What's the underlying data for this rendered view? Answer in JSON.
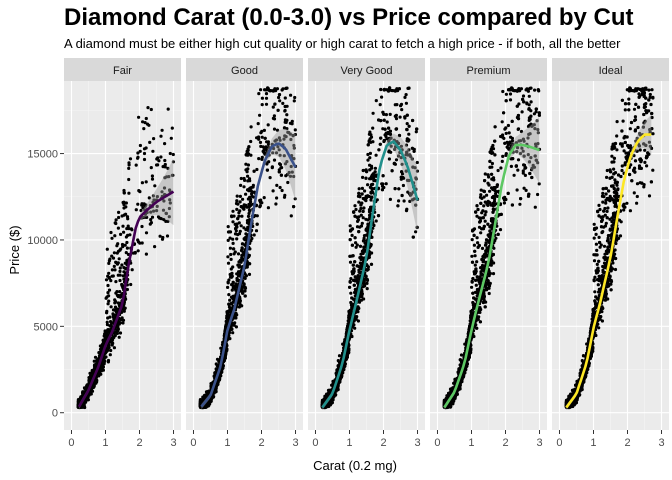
{
  "chart_data": {
    "type": "scatter",
    "title": "Diamond Carat (0.0-3.0) vs Price compared by Cut",
    "subtitle": "A diamond must be either high cut quality or high carat to fetch a high price - if both, all the better",
    "xlabel": "Carat (0.2 mg)",
    "ylabel": "Price ($)",
    "xlim": [
      0,
      3
    ],
    "ylim": [
      0,
      19000
    ],
    "x_ticks": [
      "0",
      "1",
      "2",
      "3"
    ],
    "y_ticks": [
      "0",
      "5000",
      "10000",
      "15000"
    ],
    "grid": true,
    "legend": "none",
    "point_color": "#000000",
    "panel_background": "#ebebeb",
    "strip_background": "#d9d9d9",
    "facets": [
      {
        "name": "Fair",
        "color": "#440154",
        "smooth": {
          "x": [
            0.22,
            0.5,
            0.8,
            1.0,
            1.2,
            1.5,
            1.7,
            1.9,
            2.0,
            2.2,
            2.5,
            3.0
          ],
          "y": [
            350,
            1300,
            2700,
            3900,
            4700,
            6300,
            8800,
            10800,
            11300,
            11700,
            12200,
            12800
          ]
        },
        "density": 0.55,
        "max_carat": 3.0
      },
      {
        "name": "Good",
        "color": "#3b528b",
        "smooth": {
          "x": [
            0.23,
            0.5,
            0.8,
            1.0,
            1.2,
            1.5,
            1.7,
            1.9,
            2.1,
            2.3,
            2.5,
            2.7,
            3.0
          ],
          "y": [
            350,
            1000,
            2700,
            4800,
            6000,
            8500,
            11000,
            13200,
            14600,
            15400,
            15600,
            15300,
            14200
          ]
        },
        "density": 0.8,
        "max_carat": 3.0
      },
      {
        "name": "Very Good",
        "color": "#21908c",
        "smooth": {
          "x": [
            0.2,
            0.5,
            0.8,
            1.0,
            1.2,
            1.5,
            1.7,
            1.9,
            2.1,
            2.3,
            2.5,
            2.7,
            3.0
          ],
          "y": [
            300,
            1100,
            2900,
            4800,
            6400,
            9000,
            11800,
            14300,
            15500,
            15700,
            15200,
            14300,
            12300
          ]
        },
        "density": 1.0,
        "max_carat": 3.0
      },
      {
        "name": "Premium",
        "color": "#5dc863",
        "smooth": {
          "x": [
            0.2,
            0.5,
            0.8,
            1.0,
            1.2,
            1.5,
            1.7,
            1.9,
            2.1,
            2.3,
            2.5,
            2.7,
            3.0
          ],
          "y": [
            300,
            1200,
            2900,
            4800,
            6400,
            8700,
            11000,
            13300,
            14900,
            15500,
            15500,
            15400,
            15200
          ]
        },
        "density": 1.0,
        "max_carat": 3.0
      },
      {
        "name": "Ideal",
        "color": "#fde725",
        "smooth": {
          "x": [
            0.2,
            0.5,
            0.8,
            1.0,
            1.2,
            1.5,
            1.7,
            1.9,
            2.1,
            2.3,
            2.5,
            2.7
          ],
          "y": [
            300,
            1100,
            2900,
            4900,
            6400,
            9000,
            11300,
            13500,
            14900,
            15700,
            16100,
            16100
          ]
        },
        "density": 1.0,
        "max_carat": 2.75
      }
    ]
  }
}
